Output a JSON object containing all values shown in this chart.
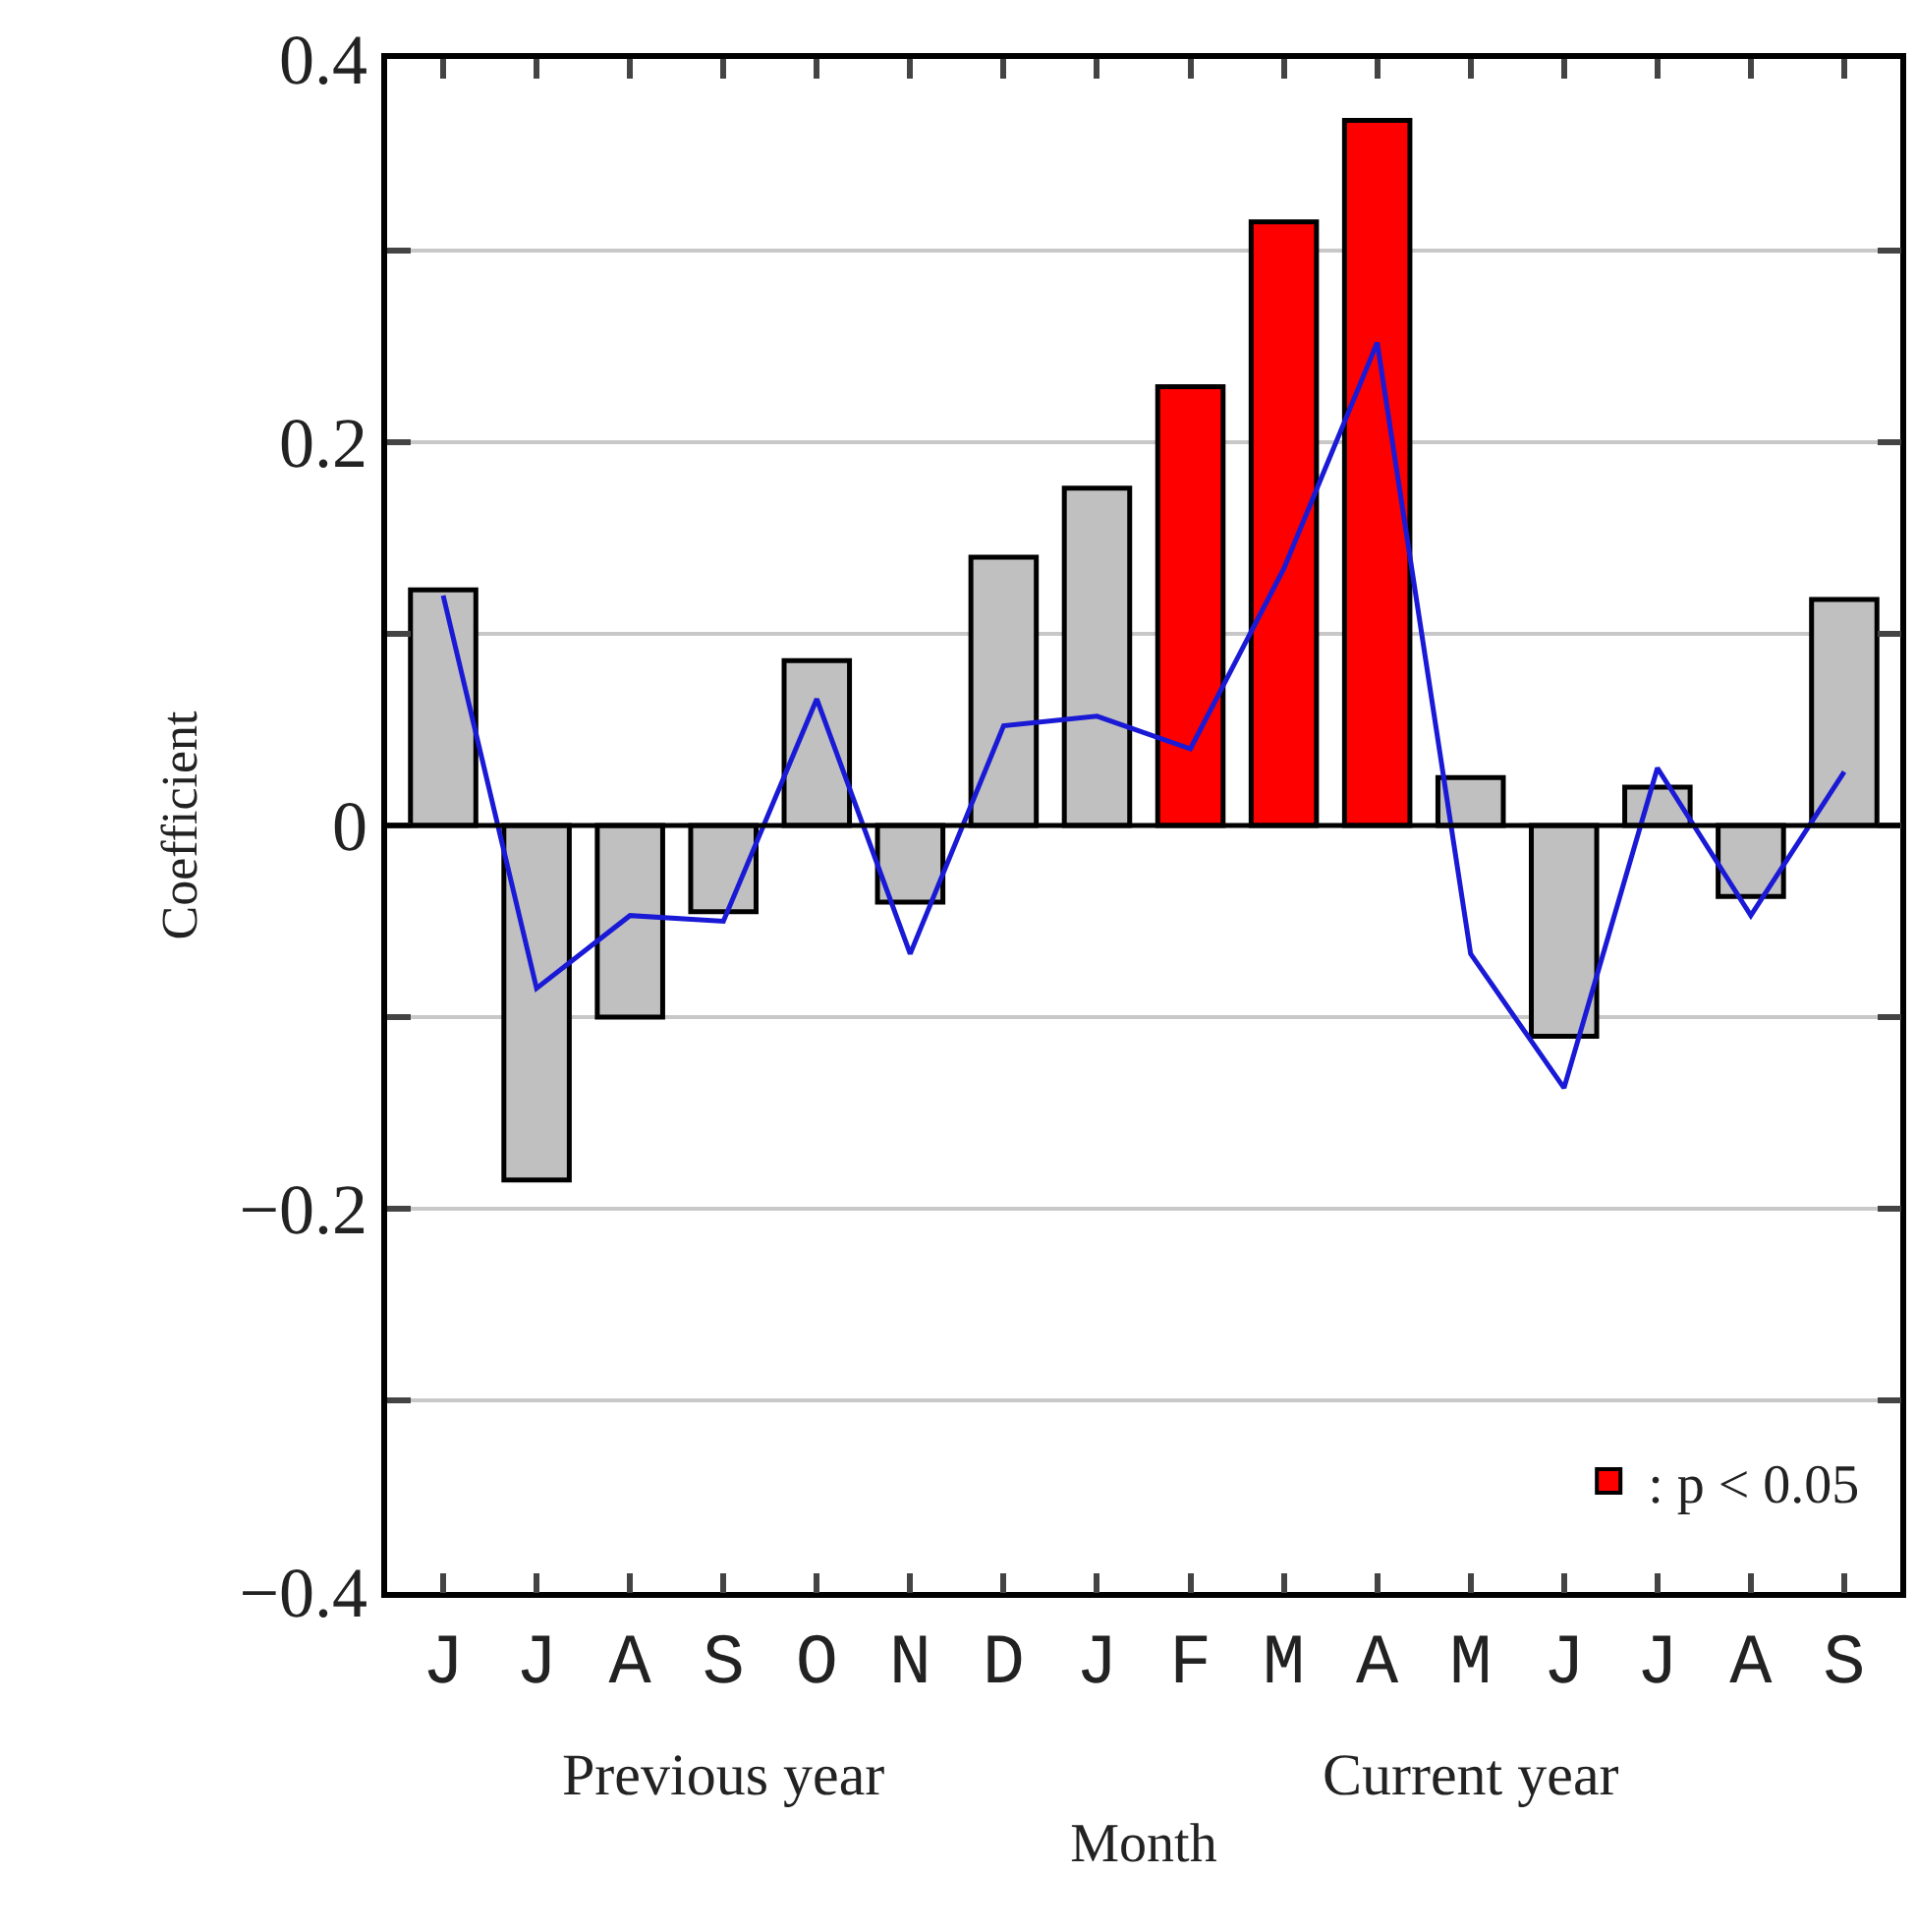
{
  "chart_data": {
    "type": "bar",
    "xlabel": "Month",
    "ylabel": "Coefficient",
    "categories": [
      "J",
      "J",
      "A",
      "S",
      "O",
      "N",
      "D",
      "J",
      "F",
      "M",
      "A",
      "M",
      "J",
      "J",
      "A",
      "S"
    ],
    "series": [
      {
        "color": "#c0c0c0",
        "values": [
          0.123,
          -0.185,
          -0.1,
          -0.045,
          0.086,
          -0.04,
          0.14,
          0.176,
          null,
          null,
          null,
          0.025,
          -0.11,
          0.02,
          -0.037,
          0.118
        ]
      },
      {
        "name": ": p < 0.05",
        "color": "#ff0000",
        "values": [
          null,
          null,
          null,
          null,
          null,
          null,
          null,
          null,
          0.229,
          0.315,
          0.368,
          null,
          null,
          null,
          null,
          null
        ]
      },
      {
        "type": "line",
        "color": "#1a1ad6",
        "values": [
          0.12,
          -0.085,
          -0.047,
          -0.05,
          0.066,
          -0.067,
          0.052,
          0.057,
          0.04,
          0.134,
          0.252,
          -0.067,
          -0.137,
          0.03,
          -0.047,
          0.028
        ]
      }
    ],
    "ylim": [
      -0.4,
      0.4
    ],
    "yticks": [
      -0.4,
      {
        "value": -0.3,
        "label": null
      },
      -0.2,
      {
        "value": -0.1,
        "label": null
      },
      0,
      {
        "value": 0.1,
        "label": null
      },
      0.2,
      {
        "value": 0.3,
        "label": null
      },
      0.4
    ],
    "ref_lines": [
      {
        "axis": "y",
        "value": 0,
        "color": "#000000"
      }
    ],
    "grid": "y",
    "legend": "bottom right",
    "annotations": [
      "Previous year",
      "Current year"
    ]
  }
}
